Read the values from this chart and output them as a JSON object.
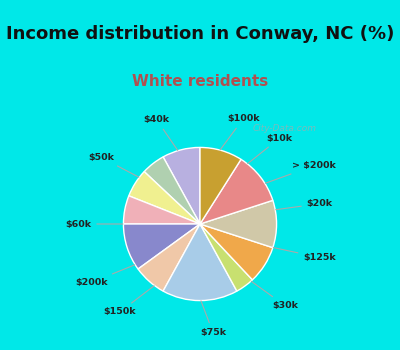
{
  "title": "Income distribution in Conway, NC (%)",
  "subtitle": "White residents",
  "labels": [
    "$100k",
    "$10k",
    "> $200k",
    "$20k",
    "$125k",
    "$30k",
    "$75k",
    "$150k",
    "$200k",
    "$60k",
    "$50k",
    "$40k"
  ],
  "sizes": [
    8,
    5,
    6,
    6,
    10,
    7,
    16,
    4,
    8,
    10,
    11,
    9
  ],
  "colors": [
    "#b8b0e0",
    "#b0d0b0",
    "#f0f090",
    "#f0b0b8",
    "#8888cc",
    "#f0c8a8",
    "#a8cce8",
    "#c8e070",
    "#f0a84a",
    "#d0c8a8",
    "#e88888",
    "#c8a030"
  ],
  "bg_color": "#00e8e8",
  "chart_bg": "#e8f5ee",
  "title_color": "#111111",
  "subtitle_color": "#b05050",
  "title_fontsize": 13,
  "subtitle_fontsize": 11
}
